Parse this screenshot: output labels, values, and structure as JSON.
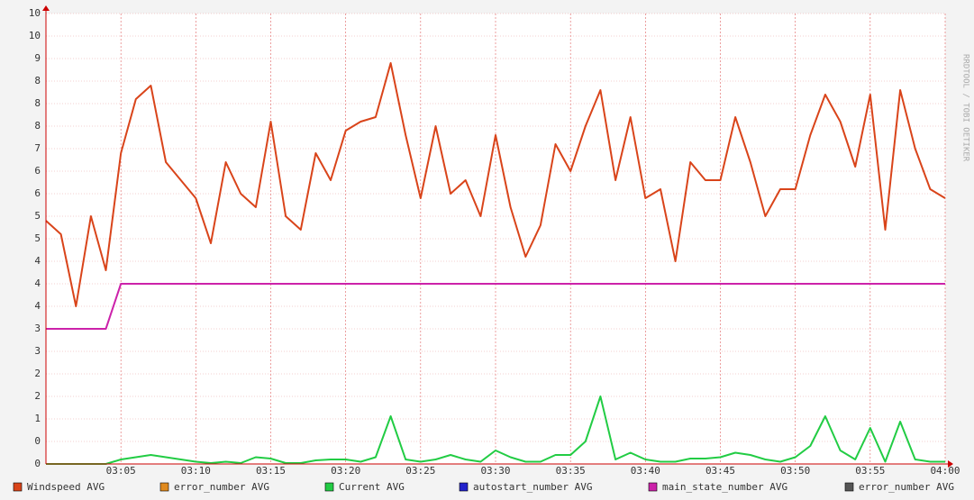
{
  "chart_data": {
    "type": "line",
    "watermark": "RRDTOOL / TOBI OETIKER",
    "x": [
      "03:00",
      "03:01",
      "03:02",
      "03:03",
      "03:04",
      "03:05",
      "03:06",
      "03:07",
      "03:08",
      "03:09",
      "03:10",
      "03:11",
      "03:12",
      "03:13",
      "03:14",
      "03:15",
      "03:16",
      "03:17",
      "03:18",
      "03:19",
      "03:20",
      "03:21",
      "03:22",
      "03:23",
      "03:24",
      "03:25",
      "03:26",
      "03:27",
      "03:28",
      "03:29",
      "03:30",
      "03:31",
      "03:32",
      "03:33",
      "03:34",
      "03:35",
      "03:36",
      "03:37",
      "03:38",
      "03:39",
      "03:40",
      "03:41",
      "03:42",
      "03:43",
      "03:44",
      "03:45",
      "03:46",
      "03:47",
      "03:48",
      "03:49",
      "03:50",
      "03:51",
      "03:52",
      "03:53",
      "03:54",
      "03:55",
      "03:56",
      "03:57",
      "03:58",
      "03:59",
      "04:00"
    ],
    "xlim": [
      "03:00",
      "04:00"
    ],
    "xticks": [
      "03:05",
      "03:10",
      "03:15",
      "03:20",
      "03:25",
      "03:30",
      "03:35",
      "03:40",
      "03:45",
      "03:50",
      "03:55",
      "04:00"
    ],
    "ylim": [
      0,
      10
    ],
    "yticks": [
      {
        "value": 0,
        "label": "0"
      },
      {
        "value": 0.5,
        "label": "0"
      },
      {
        "value": 1,
        "label": "1"
      },
      {
        "value": 1.5,
        "label": "2"
      },
      {
        "value": 2,
        "label": "2"
      },
      {
        "value": 2.5,
        "label": "3"
      },
      {
        "value": 3,
        "label": "3"
      },
      {
        "value": 3.5,
        "label": "4"
      },
      {
        "value": 4,
        "label": "4"
      },
      {
        "value": 4.5,
        "label": "4"
      },
      {
        "value": 5,
        "label": "5"
      },
      {
        "value": 5.5,
        "label": "5"
      },
      {
        "value": 6,
        "label": "6"
      },
      {
        "value": 6.5,
        "label": "6"
      },
      {
        "value": 7,
        "label": "7"
      },
      {
        "value": 7.5,
        "label": "8"
      },
      {
        "value": 8,
        "label": "8"
      },
      {
        "value": 8.5,
        "label": "8"
      },
      {
        "value": 9,
        "label": "9"
      },
      {
        "value": 9.5,
        "label": "10"
      },
      {
        "value": 10,
        "label": "10"
      }
    ],
    "grid": true,
    "series": [
      {
        "name": "Windspeed AVG",
        "color": "#d9441a",
        "values": [
          5.4,
          5.1,
          3.5,
          5.5,
          4.3,
          6.9,
          8.1,
          8.4,
          6.7,
          6.3,
          5.9,
          4.9,
          6.7,
          6.0,
          5.7,
          7.6,
          5.5,
          5.2,
          6.9,
          6.3,
          7.4,
          7.6,
          7.7,
          8.9,
          7.3,
          5.9,
          7.5,
          6.0,
          6.3,
          5.5,
          7.3,
          5.7,
          4.6,
          5.3,
          7.1,
          6.5,
          7.5,
          8.3,
          6.3,
          7.7,
          5.9,
          6.1,
          4.5,
          6.7,
          6.3,
          6.3,
          7.7,
          6.7,
          5.5,
          6.1,
          6.1,
          7.3,
          8.2,
          7.6,
          6.6,
          8.2,
          5.2,
          8.3,
          7.0,
          6.1,
          5.9
        ]
      },
      {
        "name": "error_number AVG",
        "color": "#e08a1e"
      },
      {
        "name": "Current AVG",
        "color": "#22cc44",
        "values": [
          0,
          0,
          0,
          0,
          0,
          0.1,
          0.15,
          0.2,
          0.15,
          0.1,
          0.05,
          0.02,
          0.05,
          0.02,
          0.15,
          0.12,
          0.02,
          0.02,
          0.08,
          0.1,
          0.1,
          0.05,
          0.15,
          1.06,
          0.1,
          0.05,
          0.1,
          0.2,
          0.1,
          0.05,
          0.3,
          0.15,
          0.05,
          0.05,
          0.2,
          0.2,
          0.5,
          1.5,
          0.1,
          0.25,
          0.1,
          0.05,
          0.05,
          0.12,
          0.12,
          0.15,
          0.25,
          0.2,
          0.1,
          0.05,
          0.15,
          0.4,
          1.06,
          0.3,
          0.1,
          0.8,
          0.05,
          0.94,
          0.1,
          0.05,
          0.05
        ]
      },
      {
        "name": "autostart_number AVG",
        "color": "#2222cc"
      },
      {
        "name": "main_state_number AVG",
        "color": "#cc22aa",
        "values": [
          3,
          3,
          3,
          3,
          3,
          4,
          4,
          4,
          4,
          4,
          4,
          4,
          4,
          4,
          4,
          4,
          4,
          4,
          4,
          4,
          4,
          4,
          4,
          4,
          4,
          4,
          4,
          4,
          4,
          4,
          4,
          4,
          4,
          4,
          4,
          4,
          4,
          4,
          4,
          4,
          4,
          4,
          4,
          4,
          4,
          4,
          4,
          4,
          4,
          4,
          4,
          4,
          4,
          4,
          4,
          4,
          4,
          4,
          4,
          4,
          4
        ]
      },
      {
        "name": "error_number AVG",
        "color": "#555555"
      }
    ]
  }
}
